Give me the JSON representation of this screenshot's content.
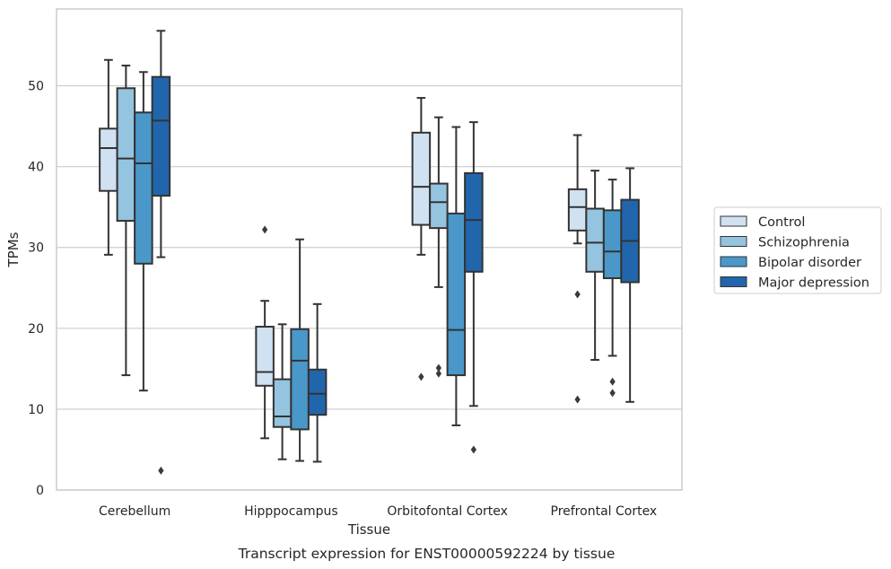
{
  "chart_data": {
    "type": "box",
    "caption": "Transcript expression for ENST00000592224 by tissue",
    "xlabel": "Tissue",
    "ylabel": "TPMs",
    "ylim": [
      0,
      59.5
    ],
    "yticks": [
      0,
      10,
      20,
      30,
      40,
      50
    ],
    "grid": "horizontal",
    "legend_placement": "right",
    "categories": [
      "Cerebellum",
      "Hipppocampus",
      "Orbitofontal Cortex",
      "Prefrontal Cortex"
    ],
    "series": [
      {
        "name": "Control",
        "color": "#d0e1f2",
        "boxes": [
          {
            "whislo": 29.1,
            "q1": 37.0,
            "med": 42.3,
            "q3": 44.7,
            "whishi": 53.2,
            "fliers": []
          },
          {
            "whislo": 6.4,
            "q1": 12.9,
            "med": 14.6,
            "q3": 20.2,
            "whishi": 23.4,
            "fliers": [
              32.2
            ]
          },
          {
            "whislo": 29.1,
            "q1": 32.8,
            "med": 37.5,
            "q3": 44.2,
            "whishi": 48.5,
            "fliers": [
              14.0
            ]
          },
          {
            "whislo": 30.5,
            "q1": 32.1,
            "med": 35.0,
            "q3": 37.2,
            "whishi": 43.9,
            "fliers": [
              24.2,
              11.2
            ]
          }
        ]
      },
      {
        "name": "Schizophrenia",
        "color": "#94c4df",
        "boxes": [
          {
            "whislo": 14.2,
            "q1": 33.3,
            "med": 41.0,
            "q3": 49.7,
            "whishi": 52.5,
            "fliers": []
          },
          {
            "whislo": 3.8,
            "q1": 7.8,
            "med": 9.1,
            "q3": 13.7,
            "whishi": 20.5,
            "fliers": []
          },
          {
            "whislo": 25.1,
            "q1": 32.4,
            "med": 35.6,
            "q3": 37.9,
            "whishi": 46.1,
            "fliers": [
              15.1,
              14.4
            ]
          },
          {
            "whislo": 16.1,
            "q1": 27.0,
            "med": 30.6,
            "q3": 34.8,
            "whishi": 39.5,
            "fliers": []
          }
        ]
      },
      {
        "name": "Bipolar disorder",
        "color": "#4a98c9",
        "boxes": [
          {
            "whislo": 12.3,
            "q1": 28.0,
            "med": 40.4,
            "q3": 46.7,
            "whishi": 51.7,
            "fliers": []
          },
          {
            "whislo": 3.6,
            "q1": 7.5,
            "med": 16.0,
            "q3": 19.9,
            "whishi": 31.0,
            "fliers": []
          },
          {
            "whislo": 8.0,
            "q1": 14.2,
            "med": 19.8,
            "q3": 34.2,
            "whishi": 44.9,
            "fliers": []
          },
          {
            "whislo": 16.6,
            "q1": 26.2,
            "med": 29.5,
            "q3": 34.6,
            "whishi": 38.4,
            "fliers": [
              13.4,
              12.0
            ]
          }
        ]
      },
      {
        "name": "Major depression",
        "color": "#2166ac",
        "boxes": [
          {
            "whislo": 28.8,
            "q1": 36.4,
            "med": 45.7,
            "q3": 51.1,
            "whishi": 56.8,
            "fliers": [
              2.4
            ]
          },
          {
            "whislo": 3.5,
            "q1": 9.3,
            "med": 11.9,
            "q3": 14.9,
            "whishi": 23.0,
            "fliers": []
          },
          {
            "whislo": 10.4,
            "q1": 27.0,
            "med": 33.4,
            "q3": 39.2,
            "whishi": 45.5,
            "fliers": [
              5.0
            ]
          },
          {
            "whislo": 10.9,
            "q1": 25.7,
            "med": 30.8,
            "q3": 35.9,
            "whishi": 39.8,
            "fliers": []
          }
        ]
      }
    ]
  }
}
